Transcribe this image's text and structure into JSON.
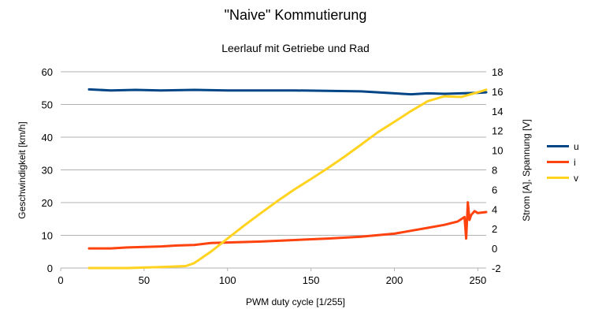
{
  "chart_data": {
    "type": "line",
    "title": "\"Naive\" Kommutierung",
    "subtitle": "Leerlauf mit Getriebe und Rad",
    "xlabel": "PWM duty cycle [1/255]",
    "ylabel": "Geschwindigkeit [km/h]",
    "y2label": "Strom [A], Spannung [V]",
    "xlim": [
      0,
      255
    ],
    "ylim": [
      0,
      60
    ],
    "y2lim": [
      -2,
      18
    ],
    "xticks": [
      "0",
      "50",
      "100",
      "150",
      "200",
      "250"
    ],
    "yticks": [
      "0",
      "10",
      "20",
      "30",
      "40",
      "50",
      "60"
    ],
    "y2ticks": [
      "-2",
      "0",
      "2",
      "4",
      "6",
      "8",
      "10",
      "12",
      "14",
      "16",
      "18"
    ],
    "grid": true,
    "legend_position": "right",
    "series": [
      {
        "name": "u",
        "axis": "right",
        "color": "#004586",
        "x": [
          17,
          30,
          45,
          60,
          80,
          100,
          120,
          140,
          160,
          180,
          190,
          200,
          210,
          220,
          230,
          240,
          250,
          255
        ],
        "y": [
          16.2,
          16.1,
          16.15,
          16.1,
          16.15,
          16.1,
          16.1,
          16.1,
          16.05,
          16.0,
          15.9,
          15.8,
          15.7,
          15.8,
          15.75,
          15.8,
          15.85,
          15.9
        ]
      },
      {
        "name": "i",
        "axis": "right",
        "color": "#ff420e",
        "x": [
          17,
          30,
          40,
          50,
          60,
          70,
          80,
          90,
          100,
          120,
          140,
          160,
          180,
          200,
          210,
          220,
          230,
          238,
          242,
          243,
          244,
          245,
          246,
          248,
          250,
          255
        ],
        "y": [
          0.0,
          0.0,
          0.1,
          0.15,
          0.2,
          0.3,
          0.35,
          0.55,
          0.6,
          0.7,
          0.85,
          1.0,
          1.2,
          1.5,
          1.8,
          2.1,
          2.4,
          2.75,
          3.2,
          1.0,
          4.7,
          2.9,
          3.4,
          3.8,
          3.6,
          3.7
        ]
      },
      {
        "name": "v",
        "axis": "left",
        "color": "#ffd320",
        "x": [
          17,
          40,
          60,
          75,
          80,
          90,
          100,
          110,
          120,
          130,
          140,
          150,
          160,
          170,
          180,
          190,
          200,
          210,
          220,
          230,
          240,
          250,
          255
        ],
        "y": [
          0,
          0,
          0.3,
          0.6,
          1.5,
          5,
          9,
          13,
          16.8,
          20.5,
          24,
          27.2,
          30.5,
          34,
          37.7,
          41.5,
          44.7,
          48,
          51,
          52.5,
          52.3,
          53.7,
          54.5
        ]
      }
    ]
  }
}
